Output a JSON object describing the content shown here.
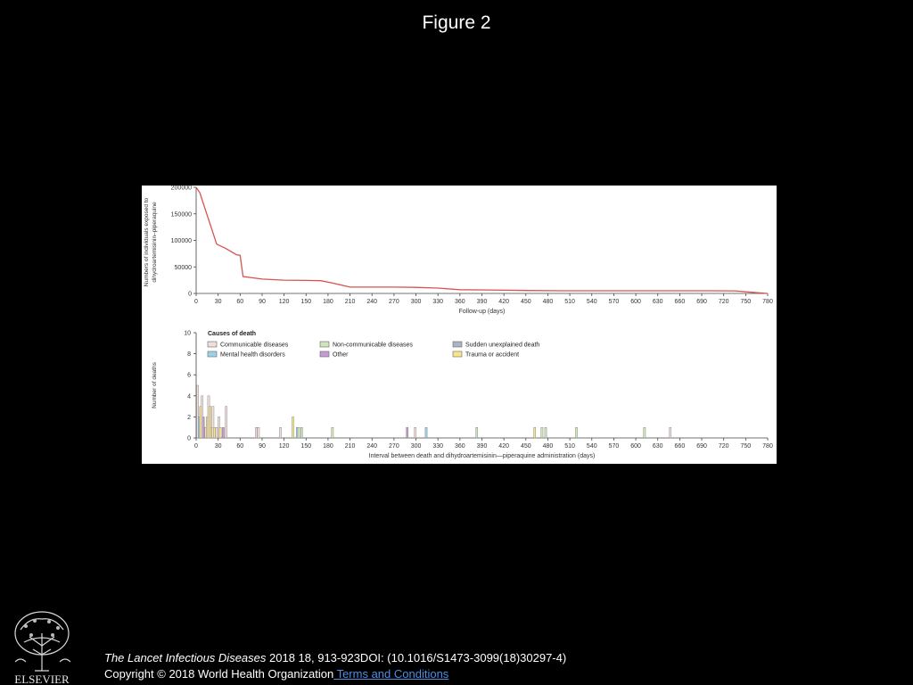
{
  "slide": {
    "title": "Figure 2",
    "citation_journal": "The Lancet Infectious Diseases",
    "citation_rest": " 2018 18, 913-923DOI: (10.1016/S1473-3099(18)30297-4)",
    "copyright": "Copyright © 2018 World Health Organization",
    "terms_link": " Terms and Conditions",
    "logo_text": "ELSEVIER"
  },
  "chart_data": [
    {
      "type": "line",
      "ylabel": "Numbers of individuals exposed to dihydroartemisinin–piperaquine",
      "ylabel_lines": [
        "Numbers of individuals exposed to",
        "dihydroartemisinin–piperaquine"
      ],
      "xlabel": "Follow-up (days)",
      "xlim": [
        0,
        780
      ],
      "ylim": [
        0,
        200000
      ],
      "xticks": [
        0,
        30,
        60,
        90,
        120,
        150,
        180,
        210,
        240,
        270,
        300,
        330,
        360,
        390,
        420,
        450,
        480,
        510,
        540,
        570,
        600,
        630,
        660,
        690,
        720,
        750,
        780
      ],
      "yticks": [
        0,
        50000,
        100000,
        150000,
        200000
      ],
      "color": "#d9534f",
      "series": [
        {
          "x": [
            0,
            5,
            28,
            40,
            55,
            60,
            64,
            90,
            120,
            150,
            170,
            185,
            210,
            240,
            270,
            300,
            330,
            360,
            400,
            450,
            500,
            550,
            600,
            650,
            700,
            735,
            760,
            780
          ],
          "y": [
            200000,
            190000,
            93000,
            85000,
            73000,
            72000,
            32000,
            27000,
            25000,
            24500,
            24000,
            20000,
            12000,
            12000,
            12000,
            11500,
            10000,
            7000,
            6500,
            5500,
            5000,
            5000,
            5000,
            5000,
            5000,
            4800,
            2000,
            0
          ]
        }
      ]
    },
    {
      "type": "bar",
      "ylabel": "Number of deaths",
      "xlabel": "Interval between death and dihydroartemisinin—piperaquine administration (days)",
      "xlim": [
        0,
        780
      ],
      "ylim": [
        0,
        10
      ],
      "xticks": [
        0,
        30,
        60,
        90,
        120,
        150,
        180,
        210,
        240,
        270,
        300,
        330,
        360,
        390,
        420,
        450,
        480,
        510,
        540,
        570,
        600,
        630,
        660,
        690,
        720,
        750,
        780
      ],
      "yticks": [
        0,
        2,
        4,
        6,
        8,
        10
      ],
      "legend_title": "Causes of death",
      "legend": [
        {
          "name": "Communicable diseases",
          "color": "#f2dedb"
        },
        {
          "name": "Non-communicable diseases",
          "color": "#cfe6b8"
        },
        {
          "name": "Sudden unexplained death",
          "color": "#aab4c2"
        },
        {
          "name": "Mental health disorders",
          "color": "#9fd0ea"
        },
        {
          "name": "Other",
          "color": "#c79ad1"
        },
        {
          "name": "Trauma or accident",
          "color": "#f7e58a"
        }
      ],
      "bars": [
        {
          "x": 2,
          "y": 5,
          "cause": "Communicable diseases"
        },
        {
          "x": 4,
          "y": 2,
          "cause": "Mental health disorders"
        },
        {
          "x": 6,
          "y": 3,
          "cause": "Trauma or accident"
        },
        {
          "x": 8,
          "y": 4,
          "cause": "Communicable diseases"
        },
        {
          "x": 10,
          "y": 2,
          "cause": "Other"
        },
        {
          "x": 13,
          "y": 1,
          "cause": "Communicable diseases"
        },
        {
          "x": 15,
          "y": 2,
          "cause": "Trauma or accident"
        },
        {
          "x": 17,
          "y": 4,
          "cause": "Communicable diseases"
        },
        {
          "x": 19,
          "y": 3,
          "cause": "Trauma or accident"
        },
        {
          "x": 21,
          "y": 1,
          "cause": "Trauma or accident"
        },
        {
          "x": 23,
          "y": 3,
          "cause": "Communicable diseases"
        },
        {
          "x": 25,
          "y": 1,
          "cause": "Trauma or accident"
        },
        {
          "x": 28,
          "y": 1,
          "cause": "Communicable diseases"
        },
        {
          "x": 31,
          "y": 2,
          "cause": "Communicable diseases"
        },
        {
          "x": 33,
          "y": 1,
          "cause": "Trauma or accident"
        },
        {
          "x": 37,
          "y": 1,
          "cause": "Other"
        },
        {
          "x": 41,
          "y": 3,
          "cause": "Communicable diseases"
        },
        {
          "x": 82,
          "y": 1,
          "cause": "Communicable diseases"
        },
        {
          "x": 85,
          "y": 1,
          "cause": "Communicable diseases"
        },
        {
          "x": 115,
          "y": 1,
          "cause": "Communicable diseases"
        },
        {
          "x": 132,
          "y": 2,
          "cause": "Trauma or accident"
        },
        {
          "x": 138,
          "y": 1,
          "cause": "Mental health disorders"
        },
        {
          "x": 140,
          "y": 1,
          "cause": "Non-communicable diseases"
        },
        {
          "x": 144,
          "y": 1,
          "cause": "Non-communicable diseases"
        },
        {
          "x": 186,
          "y": 1,
          "cause": "Non-communicable diseases"
        },
        {
          "x": 288,
          "y": 1,
          "cause": "Other"
        },
        {
          "x": 299,
          "y": 1,
          "cause": "Communicable diseases"
        },
        {
          "x": 314,
          "y": 1,
          "cause": "Mental health disorders"
        },
        {
          "x": 383,
          "y": 1,
          "cause": "Non-communicable diseases"
        },
        {
          "x": 462,
          "y": 1,
          "cause": "Trauma or accident"
        },
        {
          "x": 472,
          "y": 1,
          "cause": "Non-communicable diseases"
        },
        {
          "x": 477,
          "y": 1,
          "cause": "Non-communicable diseases"
        },
        {
          "x": 519,
          "y": 1,
          "cause": "Non-communicable diseases"
        },
        {
          "x": 612,
          "y": 1,
          "cause": "Non-communicable diseases"
        },
        {
          "x": 647,
          "y": 1,
          "cause": "Communicable diseases"
        }
      ]
    }
  ]
}
